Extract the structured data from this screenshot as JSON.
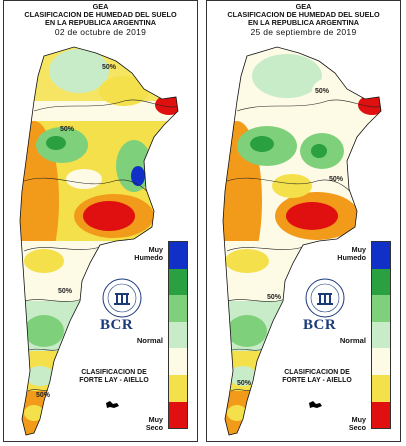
{
  "panels": [
    {
      "header": {
        "org": "GEA",
        "title_line1": "CLASIFICACION DE HUMEDAD DEL SUELO",
        "title_line2": "EN LA REPUBLICA ARGENTINA",
        "date": "02 de octubre de 2019"
      },
      "legend": {
        "top_label": "Muy Humedo",
        "middle_label": "Normal",
        "bottom_label": "Muy Seco"
      },
      "logo_text": "BCR",
      "classification_line1": "CLASIFICACION DE",
      "classification_line2": "FORTE LAY - AIELLO",
      "contour_labels": [
        "50%",
        "50%",
        "50%",
        "50%"
      ]
    },
    {
      "header": {
        "org": "GEA",
        "title_line1": "CLASIFICACION DE HUMEDAD DEL SUELO",
        "title_line2": "EN LA REPUBLICA ARGENTINA",
        "date": "25 de septiembre de 2019"
      },
      "legend": {
        "top_label": "Muy Humedo",
        "middle_label": "Normal",
        "bottom_label": "Muy Seco"
      },
      "logo_text": "BCR",
      "classification_line1": "CLASIFICACION DE",
      "classification_line2": "FORTE LAY - AIELLO",
      "contour_labels": [
        "50%",
        "50%",
        "50%",
        "50%"
      ]
    }
  ],
  "legend_colors": [
    "#1030c8",
    "#2aa040",
    "#7fd07a",
    "#c8ecc8",
    "#fdfbe6",
    "#f4e04a",
    "#f29a1a",
    "#e01010"
  ]
}
